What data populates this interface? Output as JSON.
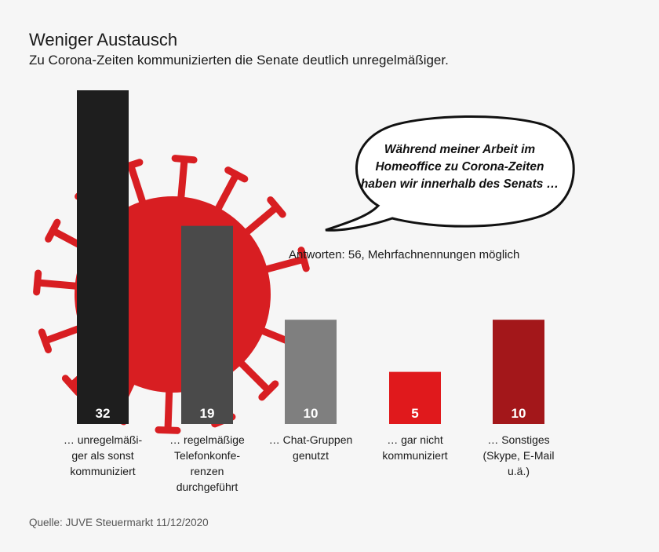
{
  "chart_data": {
    "type": "bar",
    "title": "Weniger Austausch",
    "subtitle": "Zu Corona-Zeiten kommunizierten die Senate deutlich unregelmäßiger.",
    "categories": [
      [
        "… unregelmäßi-",
        "ger als sonst",
        "kommuniziert"
      ],
      [
        "… regelmäßige",
        "Telefonkonfe-",
        "renzen",
        "durchgeführt"
      ],
      [
        "… Chat-Gruppen",
        "genutzt"
      ],
      [
        "… gar nicht",
        "kommuniziert"
      ],
      [
        "… Sonstiges",
        "(Skype, E-Mail",
        "u.ä.)"
      ]
    ],
    "values": [
      32,
      19,
      10,
      5,
      10
    ],
    "value_labels": [
      "32",
      "19",
      "10",
      "5",
      "10"
    ],
    "colors": [
      "#1e1e1e",
      "#4a4a4a",
      "#7f7f7f",
      "#e0191c",
      "#a3171a"
    ],
    "ylim": [
      0,
      32
    ],
    "note": "Antworten: 56, Mehrfachnennungen möglich",
    "speech_bubble": "Während meiner Arbeit im Homeoffice zu Corona-Zeiten haben wir innerhalb des Senats …",
    "source": "Quelle: JUVE Steuermarkt 11/12/2020",
    "decoration_color": "#d81e22"
  }
}
